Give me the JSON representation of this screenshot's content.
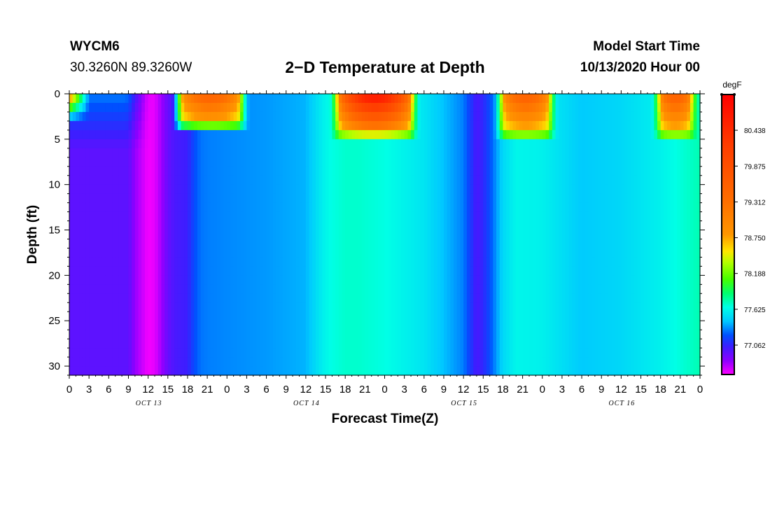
{
  "header": {
    "station": "WYCM6",
    "coordinates": "30.3260N 89.3260W",
    "title": "2−D Temperature at Depth",
    "model_start_label": "Model Start Time",
    "model_start_time": "10/13/2020 Hour 00"
  },
  "chart_data": {
    "type": "heatmap",
    "title": "2−D Temperature at Depth",
    "xlabel": "Forecast Time(Z)",
    "ylabel": "Depth (ft)",
    "x_hours_range": [
      0,
      96
    ],
    "ylim": [
      31,
      0
    ],
    "y_ticks": [
      0,
      5,
      10,
      15,
      20,
      25,
      30
    ],
    "x_tick_labels": [
      "0",
      "3",
      "6",
      "9",
      "12",
      "15",
      "18",
      "21",
      "0",
      "3",
      "6",
      "9",
      "12",
      "15",
      "18",
      "21",
      "0",
      "3",
      "6",
      "9",
      "12",
      "15",
      "18",
      "21",
      "0",
      "3",
      "6",
      "9",
      "12",
      "15",
      "18",
      "21",
      "0"
    ],
    "day_labels": [
      {
        "text": "OCT 13",
        "hour": 12
      },
      {
        "text": "OCT 14",
        "hour": 36
      },
      {
        "text": "OCT 15",
        "hour": 60
      },
      {
        "text": "OCT 16",
        "hour": 84
      }
    ],
    "colorbar": {
      "unit": "degF",
      "tick_labels": [
        "80.438",
        "79.875",
        "79.312",
        "78.750",
        "78.188",
        "77.625",
        "77.062"
      ],
      "tick_values": [
        80.438,
        79.875,
        79.312,
        78.75,
        78.188,
        77.625,
        77.062
      ],
      "vmin": 76.6,
      "vmax": 81.0
    },
    "deep_temperature_series": {
      "hours": [
        0,
        6,
        9,
        10,
        12,
        13,
        14,
        15,
        16,
        17,
        18,
        19,
        20,
        21,
        24,
        30,
        36,
        38,
        39,
        40,
        42,
        44,
        48,
        54,
        60,
        61,
        62,
        63,
        64,
        65,
        66,
        68,
        72,
        78,
        84,
        90,
        94,
        96
      ],
      "values": [
        76.95,
        76.95,
        76.95,
        76.8,
        76.62,
        76.65,
        76.78,
        76.92,
        77.0,
        77.02,
        77.04,
        77.2,
        77.28,
        77.3,
        77.32,
        77.35,
        77.4,
        77.55,
        77.62,
        77.66,
        77.7,
        77.7,
        77.66,
        77.55,
        77.3,
        77.15,
        77.0,
        77.08,
        77.2,
        77.35,
        77.5,
        77.62,
        77.6,
        77.45,
        77.5,
        77.6,
        77.7,
        77.75
      ]
    },
    "surface_warm_periods": [
      {
        "start_hour": 15.5,
        "end_hour": 27.5,
        "mixed_layer_depth_ft": 4,
        "peak_degF": 79.6
      },
      {
        "start_hour": 39.5,
        "end_hour": 53.5,
        "mixed_layer_depth_ft": 5,
        "peak_degF": 80.8
      },
      {
        "start_hour": 64.5,
        "end_hour": 74.5,
        "mixed_layer_depth_ft": 5,
        "peak_degF": 79.6
      },
      {
        "start_hour": 88.5,
        "end_hour": 96,
        "mixed_layer_depth_ft": 5,
        "peak_degF": 79.6
      }
    ]
  }
}
